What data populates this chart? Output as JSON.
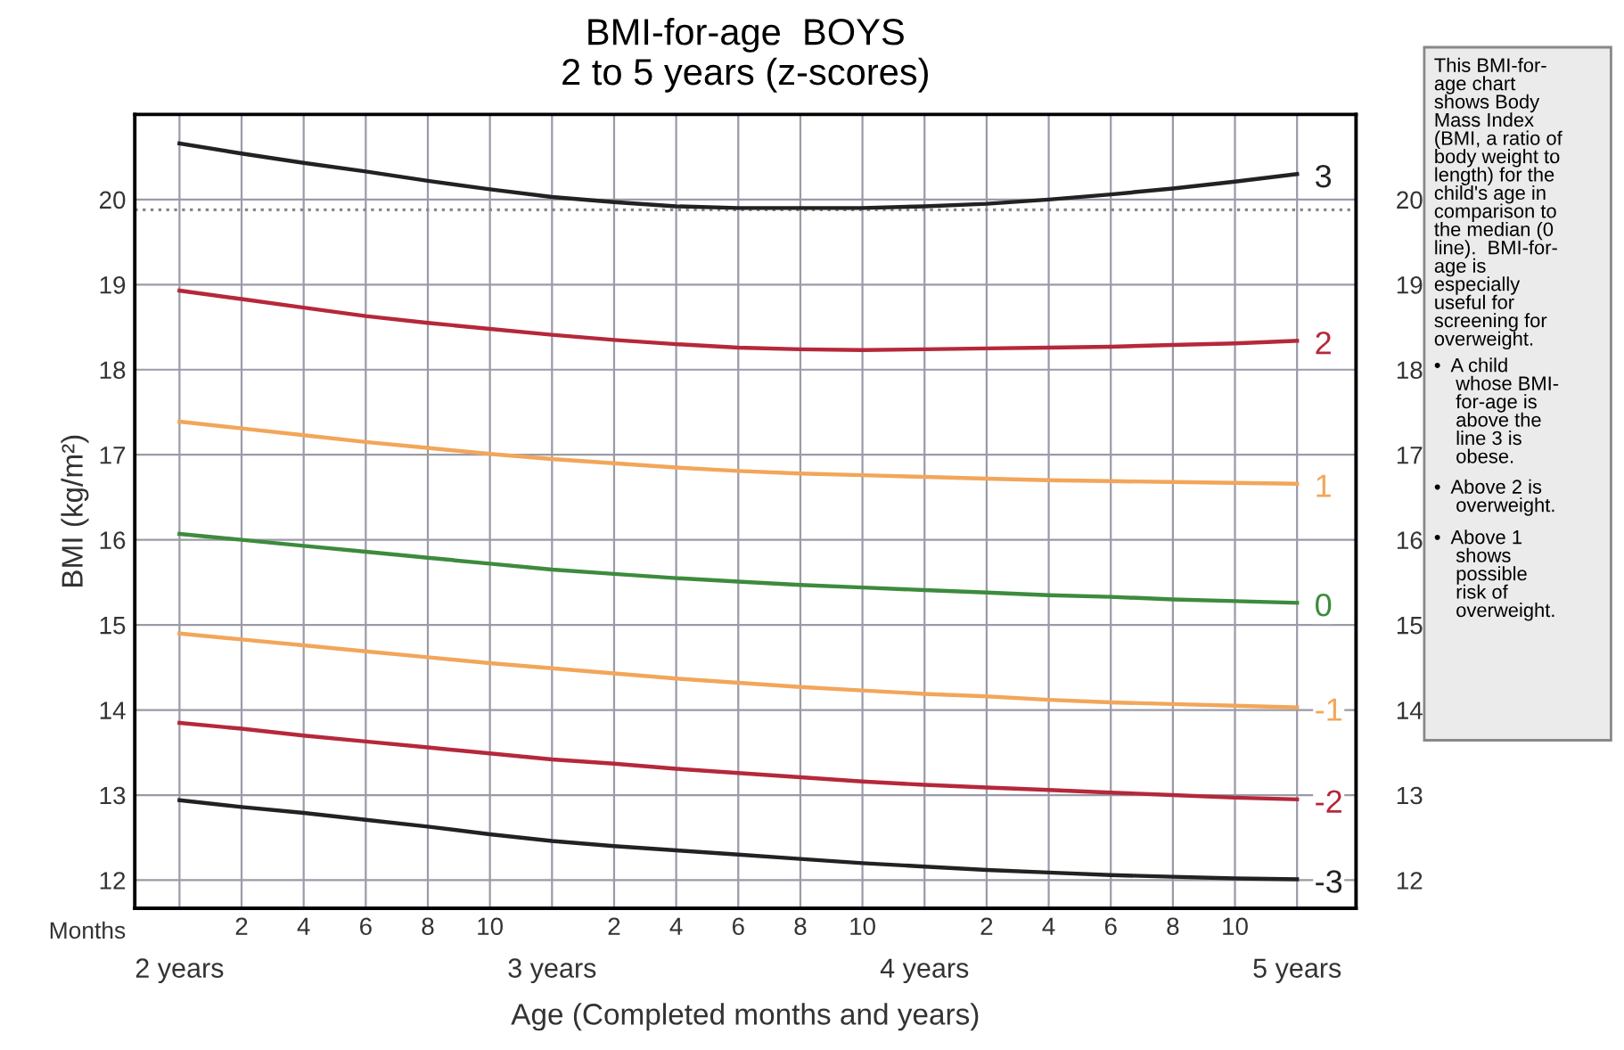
{
  "chart_data": {
    "type": "line",
    "title": "BMI-for-age  BOYS",
    "subtitle": "2 to 5 years (z-scores)",
    "xlabel": "Age (Completed months and years)",
    "ylabel": "BMI (kg/m²)",
    "categories": [
      "2 years",
      "2",
      "4",
      "6",
      "8",
      "10",
      "3 years",
      "2",
      "4",
      "6",
      "8",
      "10",
      "4 years",
      "2",
      "4",
      "6",
      "8",
      "10",
      "5 years"
    ],
    "series": [
      {
        "name": "3",
        "color": "#222222",
        "values": [
          20.66,
          20.54,
          20.43,
          20.33,
          20.22,
          20.12,
          20.03,
          19.97,
          19.92,
          19.9,
          19.9,
          19.9,
          19.92,
          19.95,
          20.0,
          20.06,
          20.13,
          20.21,
          20.3
        ]
      },
      {
        "name": "2",
        "color": "#b5283a",
        "values": [
          18.93,
          18.83,
          18.73,
          18.63,
          18.55,
          18.48,
          18.41,
          18.35,
          18.3,
          18.26,
          18.24,
          18.23,
          18.24,
          18.25,
          18.26,
          18.27,
          18.29,
          18.31,
          18.34
        ]
      },
      {
        "name": "1",
        "color": "#f2a65a",
        "values": [
          17.39,
          17.31,
          17.23,
          17.15,
          17.08,
          17.01,
          16.95,
          16.9,
          16.85,
          16.81,
          16.78,
          16.76,
          16.74,
          16.72,
          16.7,
          16.69,
          16.68,
          16.67,
          16.66
        ]
      },
      {
        "name": "0",
        "color": "#3d8b3d",
        "values": [
          16.07,
          16.0,
          15.93,
          15.86,
          15.79,
          15.72,
          15.65,
          15.6,
          15.55,
          15.51,
          15.47,
          15.44,
          15.41,
          15.38,
          15.35,
          15.33,
          15.3,
          15.28,
          15.26
        ]
      },
      {
        "name": "-1",
        "color": "#f2a65a",
        "values": [
          14.9,
          14.83,
          14.76,
          14.69,
          14.62,
          14.55,
          14.49,
          14.43,
          14.37,
          14.32,
          14.27,
          14.23,
          14.19,
          14.16,
          14.12,
          14.09,
          14.07,
          14.05,
          14.03
        ]
      },
      {
        "name": "-2",
        "color": "#b5283a",
        "values": [
          13.85,
          13.78,
          13.7,
          13.63,
          13.56,
          13.49,
          13.42,
          13.37,
          13.31,
          13.26,
          13.21,
          13.16,
          13.12,
          13.09,
          13.06,
          13.03,
          13.0,
          12.97,
          12.95
        ]
      },
      {
        "name": "-3",
        "color": "#222222",
        "values": [
          12.94,
          12.86,
          12.79,
          12.71,
          12.63,
          12.54,
          12.46,
          12.4,
          12.35,
          12.3,
          12.25,
          12.2,
          12.16,
          12.12,
          12.09,
          12.06,
          12.04,
          12.02,
          12.01
        ]
      }
    ],
    "ylim": [
      11.67,
      21.0
    ],
    "yticks": [
      12,
      13,
      14,
      15,
      16,
      17,
      18,
      19,
      20
    ],
    "y2lim": [
      11.67,
      21.0
    ],
    "y2ticks": [
      12,
      13,
      14,
      15,
      16,
      17,
      18,
      19,
      20
    ],
    "ref_lines": [
      {
        "axis": "y",
        "value": 19.88,
        "label": null,
        "color": "#888888",
        "line_style": "dotted"
      }
    ],
    "grid": true,
    "legend": false,
    "marker": "none",
    "line_style": "solid",
    "annotations": [
      "Months",
      "This BMI-for-\nage chart\nshows Body\nMass Index\n(BMI, a ratio of\nbody weight to\nlength) for the\nchild's age in\ncomparison to\nthe median (0\nline).  BMI-for-\nage is\nespecially\nuseful for\nscreening for\noverweight.",
      "•  A child\n    whose BMI-\n    for-age is\n    above the\n    line 3 is\n    obese.",
      "•  Above 2 is\n    overweight.",
      "•  Above 1\n    shows\n    possible\n    risk of\n    overweight."
    ]
  }
}
